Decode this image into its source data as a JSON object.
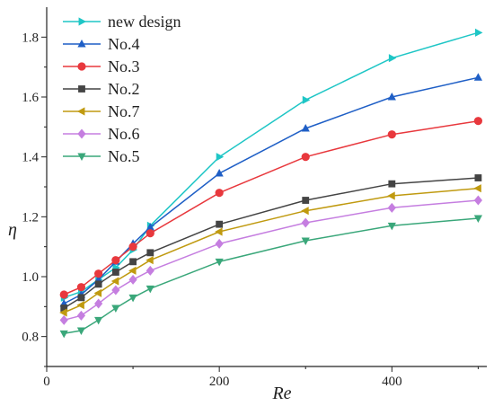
{
  "chart_data": {
    "type": "line",
    "title": "",
    "xlabel": "Re",
    "ylabel": "η",
    "xlim": [
      0,
      510
    ],
    "ylim": [
      0.7,
      1.9
    ],
    "xticks": [
      0,
      200,
      400
    ],
    "yticks": [
      0.8,
      1.0,
      1.2,
      1.4,
      1.6,
      1.8
    ],
    "legend_position": "top-left",
    "grid": false,
    "series": [
      {
        "name": "new design",
        "color": "#1fc6c6",
        "marker": "triangle-right",
        "x": [
          20,
          40,
          60,
          80,
          100,
          120,
          200,
          300,
          400,
          500
        ],
        "y": [
          0.93,
          0.95,
          0.99,
          1.03,
          1.09,
          1.17,
          1.4,
          1.59,
          1.73,
          1.815
        ]
      },
      {
        "name": "No.4",
        "color": "#1f5fc6",
        "marker": "triangle-up",
        "x": [
          20,
          40,
          60,
          80,
          100,
          120,
          200,
          300,
          400,
          500
        ],
        "y": [
          0.91,
          0.94,
          0.99,
          1.05,
          1.11,
          1.165,
          1.345,
          1.495,
          1.6,
          1.665
        ]
      },
      {
        "name": "No.3",
        "color": "#e8383d",
        "marker": "circle",
        "x": [
          20,
          40,
          60,
          80,
          100,
          120,
          200,
          300,
          400,
          500
        ],
        "y": [
          0.94,
          0.965,
          1.01,
          1.055,
          1.1,
          1.145,
          1.28,
          1.4,
          1.475,
          1.52
        ]
      },
      {
        "name": "No.2",
        "color": "#444444",
        "marker": "square",
        "x": [
          20,
          40,
          60,
          80,
          100,
          120,
          200,
          300,
          400,
          500
        ],
        "y": [
          0.895,
          0.93,
          0.975,
          1.015,
          1.05,
          1.08,
          1.175,
          1.255,
          1.31,
          1.33
        ]
      },
      {
        "name": "No.7",
        "color": "#c09a10",
        "marker": "triangle-left",
        "x": [
          20,
          40,
          60,
          80,
          100,
          120,
          200,
          300,
          400,
          500
        ],
        "y": [
          0.88,
          0.905,
          0.945,
          0.985,
          1.02,
          1.055,
          1.15,
          1.22,
          1.27,
          1.295
        ]
      },
      {
        "name": "No.6",
        "color": "#c57ee0",
        "marker": "diamond",
        "x": [
          20,
          40,
          60,
          80,
          100,
          120,
          200,
          300,
          400,
          500
        ],
        "y": [
          0.855,
          0.87,
          0.91,
          0.955,
          0.99,
          1.02,
          1.11,
          1.18,
          1.23,
          1.255
        ]
      },
      {
        "name": "No.5",
        "color": "#3aa77a",
        "marker": "triangle-down",
        "x": [
          20,
          40,
          60,
          80,
          100,
          120,
          200,
          300,
          400,
          500
        ],
        "y": [
          0.81,
          0.82,
          0.855,
          0.895,
          0.93,
          0.96,
          1.05,
          1.12,
          1.17,
          1.195
        ]
      }
    ]
  }
}
